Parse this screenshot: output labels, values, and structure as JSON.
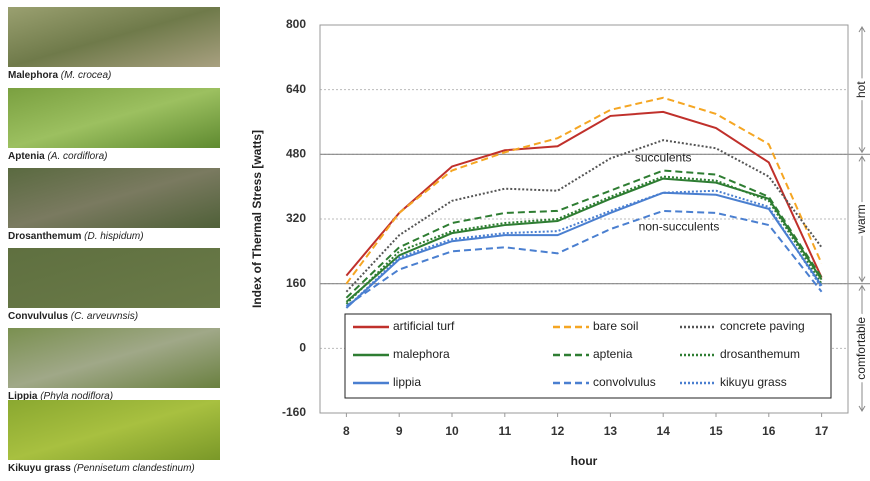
{
  "photos": [
    {
      "name": "Malephora",
      "species": "(M. crocea)"
    },
    {
      "name": "Aptenia",
      "species": "(A. cordiflora)"
    },
    {
      "name": "Drosanthemum",
      "species": "(D. hispidum)"
    },
    {
      "name": "Convulvulus",
      "species": "(C. arveuvnsis)"
    },
    {
      "name": "Lippia",
      "species": "(Phyla nodiflora)"
    },
    {
      "name": "Kikuyu grass",
      "species": "(Pennisetum clandestinum)"
    }
  ],
  "chart_data": {
    "type": "line",
    "y_label": "Index of Thermal Stress [watts]",
    "x_label": "hour",
    "x": [
      8,
      9,
      10,
      11,
      12,
      13,
      14,
      15,
      16,
      17
    ],
    "xlim": [
      7.5,
      17.5
    ],
    "xticks": [
      8,
      9,
      10,
      11,
      12,
      13,
      14,
      15,
      16,
      17
    ],
    "ylim": [
      -160,
      800
    ],
    "yticks": [
      -160,
      0,
      160,
      320,
      480,
      640,
      800
    ],
    "grid": true,
    "legend": "bottom",
    "thresholds": [
      160,
      480
    ],
    "zones": [
      {
        "label": "hot",
        "range": [
          480,
          800
        ]
      },
      {
        "label": "warm",
        "range": [
          160,
          480
        ]
      },
      {
        "label": "comfortable",
        "range": [
          -160,
          160
        ]
      }
    ],
    "annotations": [
      {
        "text": "succulents",
        "x": 14,
        "y": 470,
        "color": "#3a8a2a"
      },
      {
        "text": "non-succulents",
        "x": 14.3,
        "y": 300,
        "color": "#4a7fd0"
      }
    ],
    "series": [
      {
        "name": "artificial turf",
        "color": "#c0302b",
        "dash": "solid",
        "values": [
          180,
          335,
          450,
          490,
          500,
          575,
          585,
          545,
          460,
          175
        ]
      },
      {
        "name": "bare soil",
        "color": "#f5a623",
        "dash": "dashed",
        "values": [
          160,
          335,
          440,
          485,
          520,
          590,
          620,
          580,
          505,
          210
        ]
      },
      {
        "name": "concrete paving",
        "color": "#555555",
        "dash": "dotted",
        "values": [
          140,
          280,
          365,
          395,
          390,
          470,
          515,
          495,
          425,
          250
        ]
      },
      {
        "name": "malephora",
        "color": "#2e7d32",
        "dash": "solid",
        "values": [
          115,
          230,
          285,
          305,
          315,
          370,
          420,
          410,
          370,
          170
        ]
      },
      {
        "name": "aptenia",
        "color": "#2e7d32",
        "dash": "dashed",
        "values": [
          125,
          250,
          310,
          335,
          340,
          390,
          440,
          430,
          375,
          175
        ]
      },
      {
        "name": "drosanthemum",
        "color": "#2e7d32",
        "dash": "dotted",
        "values": [
          110,
          240,
          290,
          310,
          320,
          375,
          425,
          415,
          365,
          160
        ]
      },
      {
        "name": "lippia",
        "color": "#4a7fd0",
        "dash": "solid",
        "values": [
          100,
          220,
          265,
          280,
          280,
          335,
          385,
          380,
          345,
          155
        ]
      },
      {
        "name": "convolvulus",
        "color": "#4a7fd0",
        "dash": "dashed",
        "values": [
          105,
          195,
          240,
          250,
          235,
          295,
          340,
          335,
          305,
          140
        ]
      },
      {
        "name": "kikuyu grass",
        "color": "#4a7fd0",
        "dash": "dotted",
        "values": [
          100,
          225,
          270,
          285,
          290,
          340,
          385,
          390,
          350,
          150
        ]
      }
    ]
  }
}
